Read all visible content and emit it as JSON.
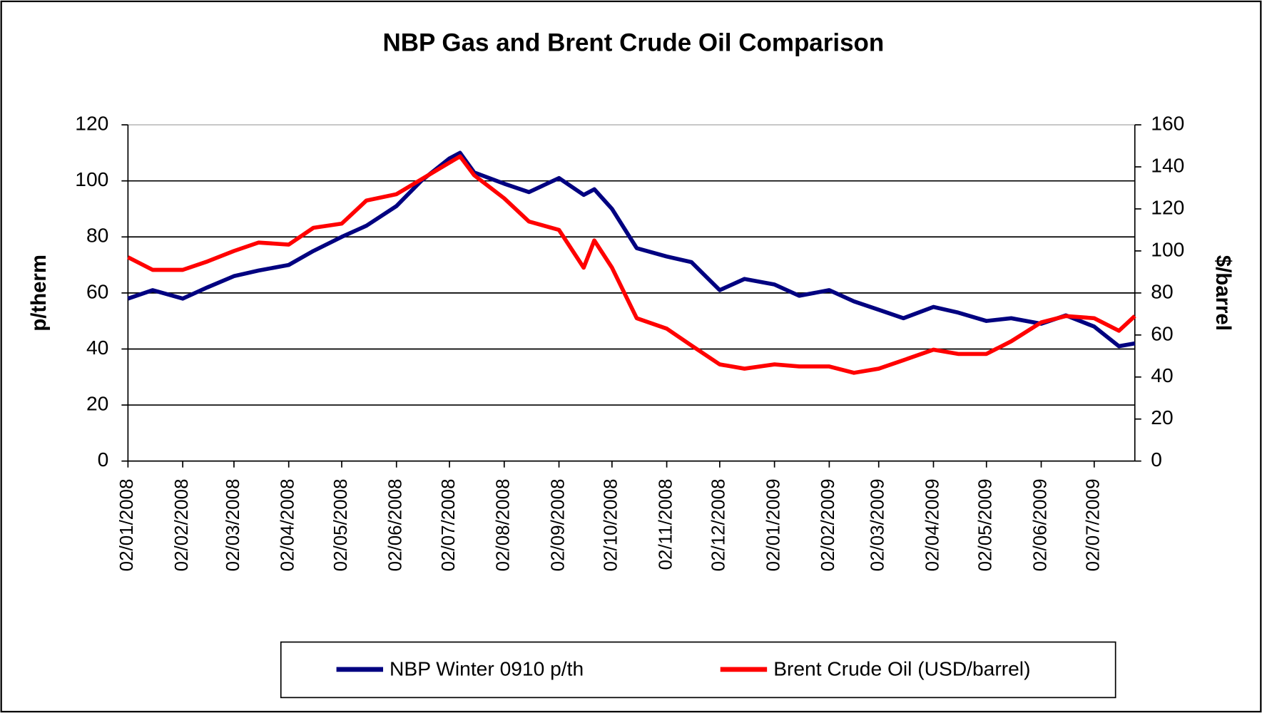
{
  "chart_data": {
    "type": "line",
    "title": "NBP Gas and Brent Crude Oil Comparison",
    "ylabel": "p/therm",
    "y2label": "$/barrel",
    "x": [
      "02/01/2008",
      "16/01/2008",
      "02/02/2008",
      "16/02/2008",
      "02/03/2008",
      "16/03/2008",
      "02/04/2008",
      "16/04/2008",
      "02/05/2008",
      "16/05/2008",
      "02/06/2008",
      "16/06/2008",
      "02/07/2008",
      "08/07/2008",
      "16/07/2008",
      "02/08/2008",
      "16/08/2008",
      "02/09/2008",
      "16/09/2008",
      "22/09/2008",
      "02/10/2008",
      "16/10/2008",
      "02/11/2008",
      "16/11/2008",
      "02/12/2008",
      "16/12/2008",
      "02/01/2009",
      "16/01/2009",
      "02/02/2009",
      "16/02/2009",
      "02/03/2009",
      "16/03/2009",
      "02/04/2009",
      "16/04/2009",
      "02/05/2009",
      "16/05/2009",
      "02/06/2009",
      "16/06/2009",
      "02/07/2009",
      "16/07/2009",
      "25/07/2009"
    ],
    "xlim": [
      "02/01/2008",
      "25/07/2009"
    ],
    "xticks": [
      "02/01/2008",
      "02/02/2008",
      "02/03/2008",
      "02/04/2008",
      "02/05/2008",
      "02/06/2008",
      "02/07/2008",
      "02/08/2008",
      "02/09/2008",
      "02/10/2008",
      "02/11/2008",
      "02/12/2008",
      "02/01/2009",
      "02/02/2009",
      "02/03/2009",
      "02/04/2009",
      "02/05/2009",
      "02/06/2009",
      "02/07/2009"
    ],
    "ylim": [
      0,
      120
    ],
    "yticks": [
      0,
      20,
      40,
      60,
      80,
      100,
      120
    ],
    "y2lim": [
      0,
      160
    ],
    "y2ticks": [
      0,
      20,
      40,
      60,
      80,
      100,
      120,
      140,
      160
    ],
    "grid": true,
    "legend": "bottom",
    "series": [
      {
        "name": "NBP Winter 0910 p/th",
        "color": "#000080",
        "axis": "y",
        "values": [
          58,
          61,
          58,
          62,
          66,
          68,
          70,
          75,
          80,
          84,
          91,
          100,
          108,
          110,
          103,
          99,
          96,
          101,
          95,
          97,
          90,
          76,
          73,
          71,
          61,
          65,
          63,
          59,
          61,
          57,
          54,
          51,
          55,
          53,
          50,
          51,
          49,
          52,
          48,
          41,
          42
        ]
      },
      {
        "name": "Brent Crude Oil (USD/barrel)",
        "color": "#ff0000",
        "axis": "y2",
        "values": [
          97,
          91,
          91,
          95,
          100,
          104,
          103,
          111,
          113,
          124,
          127,
          134,
          142,
          145,
          136,
          125,
          114,
          110,
          92,
          105,
          92,
          68,
          63,
          55,
          46,
          44,
          46,
          45,
          45,
          42,
          44,
          48,
          53,
          51,
          51,
          57,
          66,
          69,
          68,
          62,
          69
        ]
      }
    ]
  }
}
